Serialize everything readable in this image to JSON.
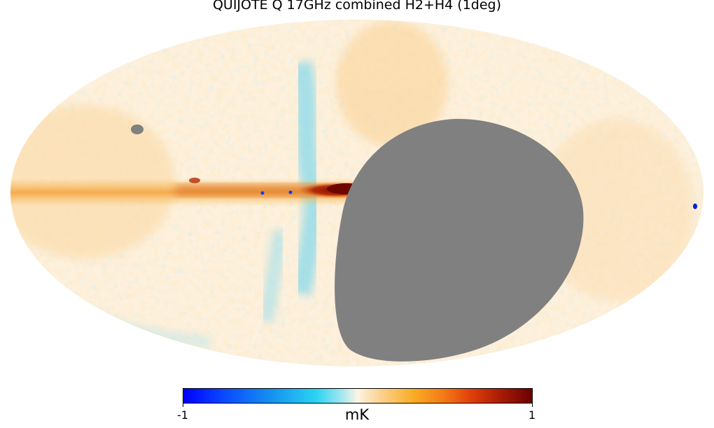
{
  "title": "QUIJOTE Q 17GHz combined H2+H4 (1deg)",
  "map": {
    "projection": "mollweide",
    "mask_color": "#808080",
    "colormap_min_color": "#0000ff",
    "colormap_mid_color": "#fdf3e3",
    "colormap_max_color": "#6b0000"
  },
  "colorbar": {
    "min_label": "-1",
    "max_label": "1",
    "unit": "mK",
    "range": [
      -1,
      1
    ]
  }
}
